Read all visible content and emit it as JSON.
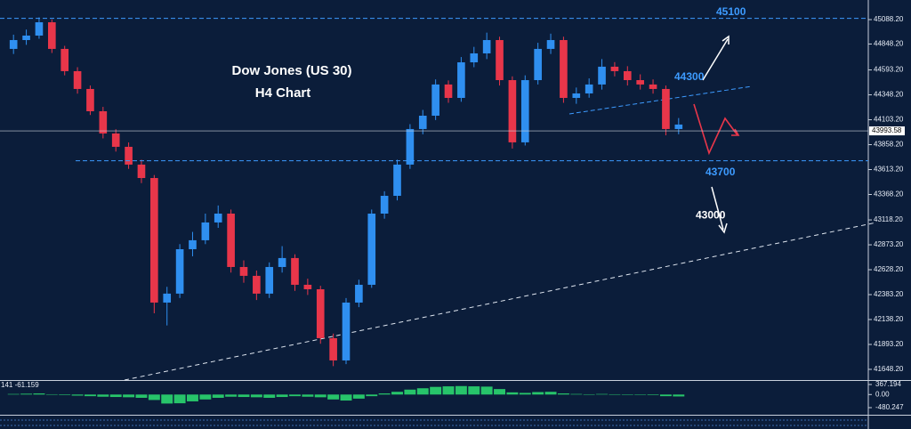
{
  "chart_data": [
    {
      "type": "candlestick",
      "title": "Dow Jones (US 30)",
      "subtitle": "H4 Chart",
      "open": [
        44800,
        44887,
        44931,
        45062,
        44800,
        44581,
        44406,
        44187,
        43968,
        43837,
        43662,
        43530,
        42305,
        42393,
        42830,
        42918,
        43093,
        43180,
        42655,
        42568,
        42393,
        42655,
        42743,
        42480,
        42436,
        41955,
        41736,
        42305,
        42480,
        43180,
        43355,
        43662,
        44012,
        44143,
        44450,
        44318,
        44668,
        44756,
        44887,
        44493,
        43881,
        44493,
        44800,
        44887,
        44318,
        44362,
        44450,
        44625,
        44581,
        44493,
        44450,
        44406,
        44012
      ],
      "high": [
        44940,
        44990,
        45110,
        45090,
        44830,
        44620,
        44440,
        44230,
        44010,
        43880,
        43710,
        43560,
        42460,
        42880,
        43000,
        43180,
        43260,
        43220,
        42720,
        42620,
        42700,
        42860,
        42780,
        42540,
        42470,
        42000,
        42350,
        42530,
        43220,
        43400,
        43710,
        44060,
        44200,
        44500,
        44490,
        44720,
        44820,
        44960,
        44920,
        44530,
        44540,
        44860,
        44950,
        44920,
        44420,
        44510,
        44700,
        44670,
        44630,
        44550,
        44500,
        44440,
        44120
      ],
      "low": [
        44750,
        44840,
        44900,
        44760,
        44540,
        44360,
        44150,
        43920,
        43790,
        43620,
        43480,
        42200,
        42080,
        42350,
        42760,
        42880,
        43040,
        42600,
        42500,
        42330,
        42350,
        42600,
        42420,
        42380,
        41900,
        41680,
        41700,
        42260,
        42450,
        43130,
        43310,
        43620,
        43960,
        44100,
        44270,
        44280,
        44620,
        44700,
        44440,
        43820,
        43850,
        44450,
        44750,
        44270,
        44260,
        44320,
        44400,
        44530,
        44440,
        44400,
        44360,
        43950,
        43960
      ],
      "close": [
        44887,
        44931,
        45062,
        44800,
        44581,
        44406,
        44187,
        43968,
        43837,
        43662,
        43530,
        42305,
        42393,
        42830,
        42918,
        43093,
        43180,
        42655,
        42568,
        42393,
        42655,
        42743,
        42480,
        42436,
        41955,
        41736,
        42305,
        42480,
        43180,
        43355,
        43662,
        44012,
        44143,
        44450,
        44318,
        44668,
        44756,
        44887,
        44493,
        43881,
        44493,
        44800,
        44887,
        44318,
        44362,
        44450,
        44625,
        44581,
        44493,
        44450,
        44406,
        44012,
        44056
      ],
      "up_color": "#2f8ff0",
      "down_color": "#e8364a",
      "ylim": [
        41543,
        45281
      ],
      "yticks": [
        {
          "value": 45088.2,
          "label": "45088.20"
        },
        {
          "value": 44848.2,
          "label": "44848.20"
        },
        {
          "value": 44593.2,
          "label": "44593.20"
        },
        {
          "value": 44348.2,
          "label": "44348.20"
        },
        {
          "value": 44103.2,
          "label": "44103.20"
        },
        {
          "value": 43858.2,
          "label": "43858.20"
        },
        {
          "value": 43613.2,
          "label": "43613.20"
        },
        {
          "value": 43368.2,
          "label": "43368.20"
        },
        {
          "value": 43118.2,
          "label": "43118.20"
        },
        {
          "value": 42873.2,
          "label": "42873.20"
        },
        {
          "value": 42628.2,
          "label": "42628.20"
        },
        {
          "value": 42383.2,
          "label": "42383.20"
        },
        {
          "value": 42138.2,
          "label": "42138.20"
        },
        {
          "value": 41893.2,
          "label": "41893.20"
        },
        {
          "value": 41648.2,
          "label": "41648.20"
        }
      ],
      "level_lines": [
        45100,
        43700
      ],
      "level_color": "#3d9bff",
      "targets": [
        44300,
        43000
      ],
      "last_price": 43993.58
    },
    {
      "type": "bar",
      "header": "141 -61.159",
      "values": [
        20,
        30,
        40,
        10,
        -20,
        -40,
        -60,
        -80,
        -90,
        -100,
        -120,
        -200,
        -330,
        -320,
        -250,
        -180,
        -120,
        -80,
        -90,
        -100,
        -120,
        -90,
        -60,
        -80,
        -100,
        -180,
        -220,
        -150,
        -60,
        40,
        100,
        180,
        230,
        280,
        300,
        310,
        300,
        290,
        200,
        80,
        60,
        90,
        100,
        40,
        20,
        10,
        20,
        10,
        0,
        -10,
        -20,
        -60,
        -70
      ],
      "color": "#27c46a",
      "ylim": [
        -708,
        498
      ],
      "yticks": [
        367.194,
        {
          "value": 0,
          "label": "0.00"
        },
        -480.247
      ]
    }
  ]
}
